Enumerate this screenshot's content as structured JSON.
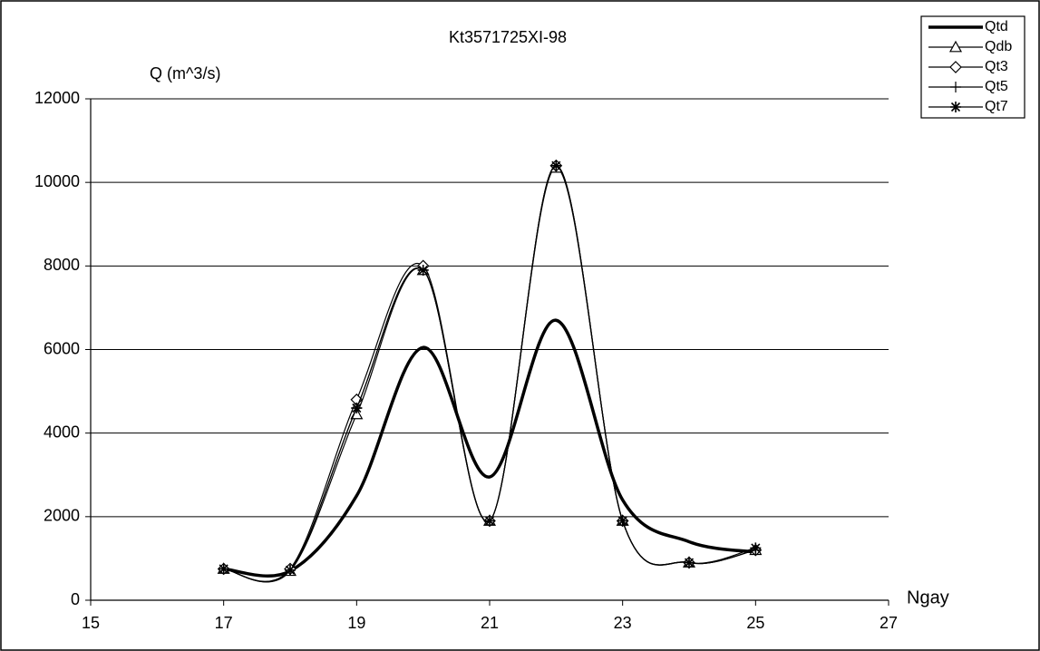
{
  "chart_data": {
    "type": "line",
    "title": "Kt3571725XI-98",
    "y_label": "Q (m^3/s)",
    "x_label": "Ngay",
    "x": [
      17,
      18,
      19,
      20,
      21,
      22,
      23,
      24,
      25
    ],
    "xlim": [
      15,
      27
    ],
    "xticks": [
      15,
      17,
      19,
      21,
      23,
      25,
      27
    ],
    "ylim": [
      0,
      12000
    ],
    "yticks": [
      0,
      2000,
      4000,
      6000,
      8000,
      10000,
      12000
    ],
    "grid": true,
    "smooth": true,
    "legend": "top-right",
    "series": [
      {
        "name": "Qtd",
        "color": "#000000",
        "width": 3.5,
        "marker": "none",
        "values": [
          750,
          700,
          2500,
          6050,
          2950,
          6700,
          2400,
          1400,
          1150
        ]
      },
      {
        "name": "Qdb",
        "color": "#000000",
        "width": 1.2,
        "marker": "triangle",
        "values": [
          750,
          700,
          4450,
          7900,
          1900,
          10350,
          1900,
          900,
          1200
        ]
      },
      {
        "name": "Qt3",
        "color": "#000000",
        "width": 1.2,
        "marker": "diamond",
        "values": [
          750,
          750,
          4800,
          8000,
          1900,
          10400,
          1900,
          900,
          1200
        ]
      },
      {
        "name": "Qt5",
        "color": "#000000",
        "width": 1.2,
        "marker": "plus",
        "values": [
          750,
          720,
          4600,
          7900,
          1900,
          10400,
          1900,
          900,
          1200
        ]
      },
      {
        "name": "Qt7",
        "color": "#000000",
        "width": 1.2,
        "marker": "asterisk",
        "values": [
          750,
          720,
          4600,
          7900,
          1900,
          10400,
          1900,
          900,
          1250
        ]
      }
    ]
  }
}
